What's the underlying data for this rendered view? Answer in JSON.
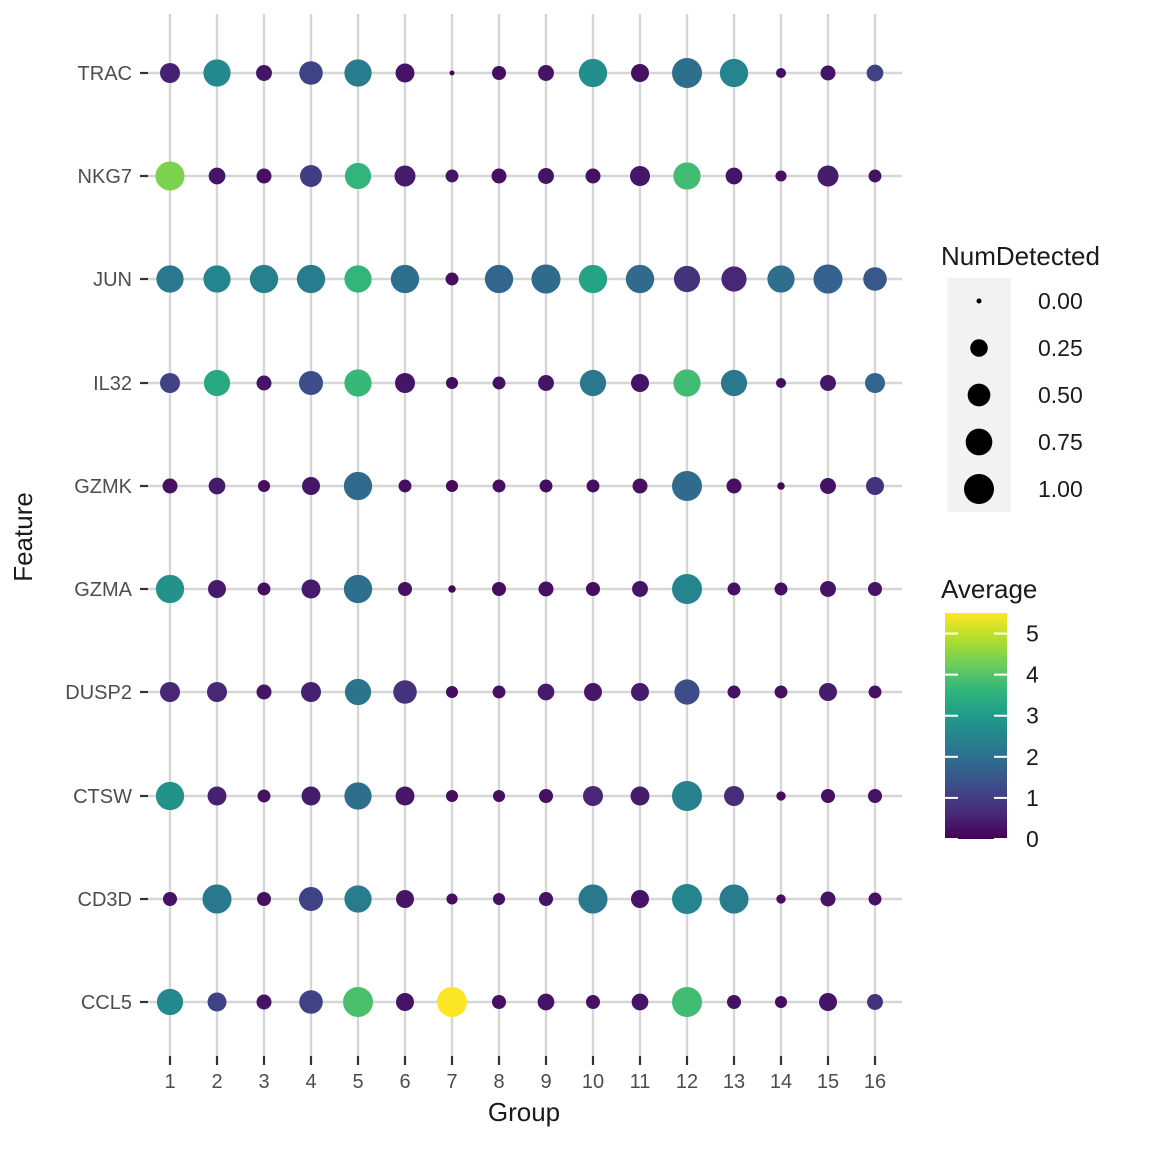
{
  "figure": {
    "x_axis": {
      "title": "Group",
      "ticks": [
        "1",
        "2",
        "3",
        "4",
        "5",
        "6",
        "7",
        "8",
        "9",
        "10",
        "11",
        "12",
        "13",
        "14",
        "15",
        "16"
      ]
    },
    "y_axis": {
      "title": "Feature",
      "ticks": [
        "TRAC",
        "NKG7",
        "JUN",
        "IL32",
        "GZMK",
        "GZMA",
        "DUSP2",
        "CTSW",
        "CD3D",
        "CCL5"
      ]
    },
    "size_legend": {
      "title": "NumDetected",
      "labels": [
        "0.00",
        "0.25",
        "0.50",
        "0.75",
        "1.00"
      ],
      "values": [
        0,
        0.25,
        0.5,
        0.75,
        1.0
      ]
    },
    "color_legend": {
      "title": "Average",
      "tick_labels": [
        "0",
        "1",
        "2",
        "3",
        "4",
        "5"
      ],
      "tick_values": [
        0,
        1,
        2,
        3,
        4,
        5
      ],
      "domain": [
        0,
        5.5
      ]
    }
  },
  "style": {
    "background": "#ffffff",
    "gridline": "#d6d6d6",
    "axis_tick": "#333333",
    "tick_label_color": "#4d4d4d",
    "text_color": "#1a1a1a",
    "legend_key_bg": "#f2f2f2",
    "legend_dot_color": "#000000",
    "viridis": [
      "#440154",
      "#482878",
      "#3e4989",
      "#31688e",
      "#26828e",
      "#1f9e89",
      "#35b779",
      "#6ece58",
      "#b5de2b",
      "#fde725"
    ]
  },
  "chart_data": {
    "type": "scatter",
    "subtype": "dot-plot",
    "title": "",
    "xlabel": "Group",
    "ylabel": "Feature",
    "groups": [
      1,
      2,
      3,
      4,
      5,
      6,
      7,
      8,
      9,
      10,
      11,
      12,
      13,
      14,
      15,
      16
    ],
    "features": [
      "TRAC",
      "NKG7",
      "JUN",
      "IL32",
      "GZMK",
      "GZMA",
      "DUSP2",
      "CTSW",
      "CD3D",
      "CCL5"
    ],
    "size_scale": {
      "variable": "NumDetected",
      "domain": [
        0,
        1
      ]
    },
    "color_scale": {
      "variable": "Average",
      "palette": "viridis",
      "domain": [
        0,
        5.5
      ]
    },
    "rows": [
      {
        "feature": "TRAC",
        "num_detected": [
          0.36,
          0.79,
          0.19,
          0.55,
          0.79,
          0.31,
          0.0,
          0.13,
          0.19,
          0.87,
          0.27,
          1.0,
          0.87,
          0.04,
          0.16,
          0.22
        ],
        "average": [
          0.5,
          2.6,
          0.3,
          1.1,
          2.3,
          0.3,
          0.1,
          0.2,
          0.3,
          2.7,
          0.25,
          2.0,
          2.5,
          0.2,
          0.3,
          1.1
        ]
      },
      {
        "feature": "NKG7",
        "num_detected": [
          0.93,
          0.22,
          0.16,
          0.46,
          0.72,
          0.41,
          0.1,
          0.16,
          0.19,
          0.16,
          0.36,
          0.79,
          0.22,
          0.06,
          0.41,
          0.1
        ],
        "average": [
          4.4,
          0.3,
          0.25,
          1.0,
          3.6,
          0.4,
          0.3,
          0.25,
          0.3,
          0.25,
          0.35,
          3.8,
          0.3,
          0.2,
          0.4,
          0.25
        ]
      },
      {
        "feature": "JUN",
        "num_detected": [
          0.79,
          0.79,
          0.87,
          0.87,
          0.79,
          0.87,
          0.1,
          0.87,
          0.93,
          0.87,
          0.87,
          0.72,
          0.65,
          0.79,
          0.93,
          0.55
        ],
        "average": [
          2.2,
          2.5,
          2.4,
          2.3,
          3.6,
          2.0,
          0.2,
          1.8,
          1.9,
          3.2,
          1.9,
          0.8,
          0.6,
          2.0,
          1.7,
          1.5
        ]
      },
      {
        "feature": "IL32",
        "num_detected": [
          0.36,
          0.72,
          0.16,
          0.58,
          0.79,
          0.36,
          0.08,
          0.1,
          0.19,
          0.72,
          0.27,
          0.79,
          0.72,
          0.04,
          0.19,
          0.36
        ],
        "average": [
          1.1,
          3.3,
          0.3,
          1.3,
          3.7,
          0.3,
          0.2,
          0.25,
          0.3,
          2.2,
          0.3,
          3.8,
          2.2,
          0.2,
          0.35,
          1.8
        ]
      },
      {
        "feature": "GZMK",
        "num_detected": [
          0.16,
          0.22,
          0.08,
          0.27,
          0.87,
          0.1,
          0.08,
          0.1,
          0.1,
          0.1,
          0.16,
          1.0,
          0.16,
          0.01,
          0.19,
          0.27
        ],
        "average": [
          0.25,
          0.4,
          0.2,
          0.35,
          1.9,
          0.2,
          0.15,
          0.2,
          0.2,
          0.2,
          0.25,
          1.9,
          0.25,
          0.1,
          0.25,
          0.8
        ]
      },
      {
        "feature": "GZMA",
        "num_detected": [
          0.87,
          0.27,
          0.1,
          0.31,
          0.87,
          0.13,
          0.01,
          0.13,
          0.16,
          0.13,
          0.19,
          1.0,
          0.1,
          0.1,
          0.19,
          0.13
        ],
        "average": [
          2.8,
          0.4,
          0.2,
          0.4,
          2.0,
          0.25,
          0.1,
          0.2,
          0.25,
          0.2,
          0.3,
          2.5,
          0.25,
          0.2,
          0.3,
          0.3
        ]
      },
      {
        "feature": "DUSP2",
        "num_detected": [
          0.36,
          0.36,
          0.16,
          0.36,
          0.72,
          0.55,
          0.08,
          0.1,
          0.22,
          0.27,
          0.27,
          0.65,
          0.1,
          0.1,
          0.27,
          0.1
        ],
        "average": [
          0.6,
          0.6,
          0.3,
          0.5,
          2.1,
          0.8,
          0.2,
          0.25,
          0.4,
          0.35,
          0.4,
          1.3,
          0.25,
          0.25,
          0.4,
          0.25
        ]
      },
      {
        "feature": "CTSW",
        "num_detected": [
          0.87,
          0.31,
          0.1,
          0.31,
          0.79,
          0.31,
          0.08,
          0.08,
          0.13,
          0.36,
          0.31,
          1.0,
          0.36,
          0.03,
          0.13,
          0.13
        ],
        "average": [
          2.8,
          0.5,
          0.25,
          0.4,
          2.0,
          0.35,
          0.2,
          0.2,
          0.25,
          0.6,
          0.4,
          2.4,
          0.7,
          0.15,
          0.25,
          0.3
        ]
      },
      {
        "feature": "CD3D",
        "num_detected": [
          0.13,
          0.93,
          0.13,
          0.58,
          0.79,
          0.27,
          0.06,
          0.08,
          0.13,
          0.93,
          0.27,
          1.0,
          0.93,
          0.03,
          0.16,
          0.1
        ],
        "average": [
          0.3,
          2.2,
          0.25,
          1.1,
          2.3,
          0.3,
          0.2,
          0.25,
          0.3,
          2.2,
          0.3,
          2.5,
          2.3,
          0.2,
          0.3,
          0.25
        ]
      },
      {
        "feature": "CCL5",
        "num_detected": [
          0.72,
          0.31,
          0.16,
          0.55,
          1.0,
          0.27,
          1.0,
          0.13,
          0.22,
          0.13,
          0.22,
          1.0,
          0.13,
          0.08,
          0.27,
          0.19
        ],
        "average": [
          2.6,
          1.1,
          0.3,
          1.1,
          3.9,
          0.3,
          5.5,
          0.25,
          0.3,
          0.25,
          0.3,
          3.8,
          0.25,
          0.2,
          0.3,
          0.8
        ]
      }
    ]
  }
}
